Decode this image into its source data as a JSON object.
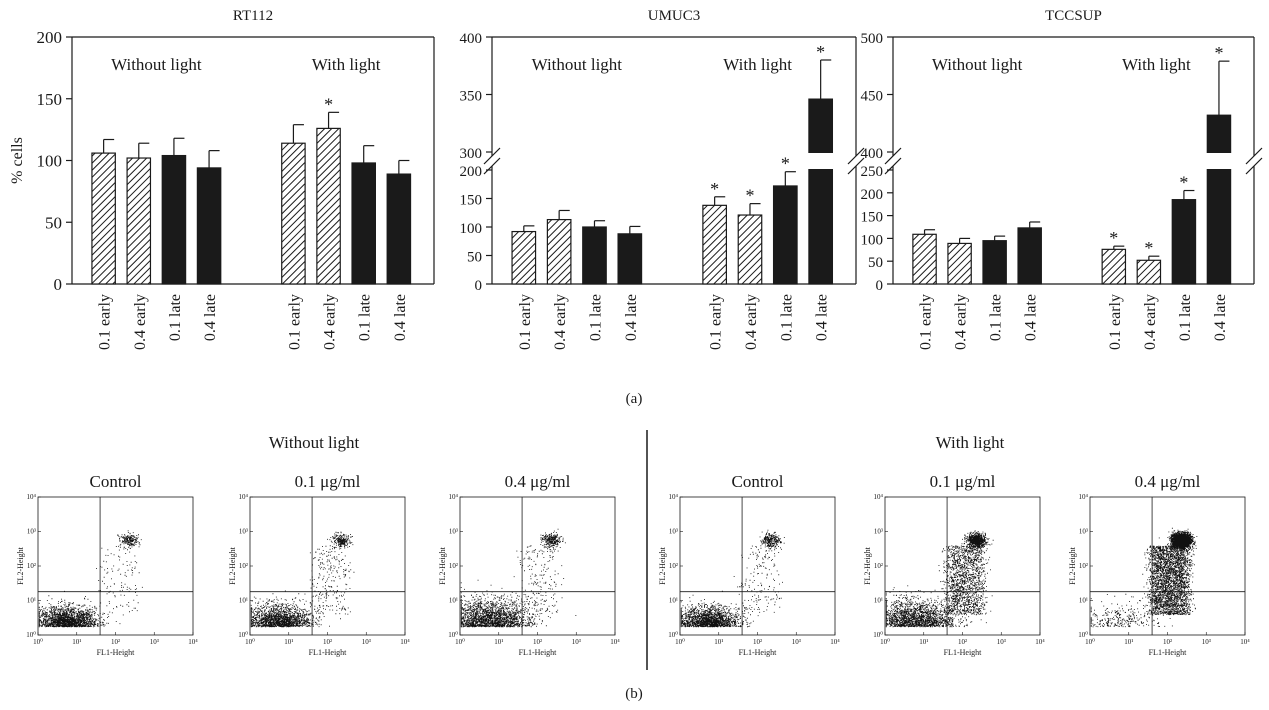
{
  "chart_data": [
    {
      "type": "bar",
      "panel": "a",
      "title": "RT112",
      "ylabel": "% cells",
      "ylim": [
        0,
        200
      ],
      "yticks": [
        "0",
        "50",
        "100",
        "150",
        "200"
      ],
      "group_labels": [
        "Without light",
        "With light"
      ],
      "categories": [
        "0.1 early",
        "0.4 early",
        "0.1 late",
        "0.4 late",
        "0.1 early",
        "0.4 early",
        "0.1 late",
        "0.4 late"
      ],
      "fills": [
        "hatch",
        "hatch",
        "solid",
        "solid",
        "hatch",
        "hatch",
        "solid",
        "solid"
      ],
      "values": [
        106,
        102,
        104,
        94,
        114,
        126,
        98,
        89
      ],
      "errors": [
        11,
        12,
        14,
        14,
        15,
        13,
        14,
        11
      ],
      "significant": [
        false,
        false,
        false,
        false,
        false,
        true,
        false,
        false
      ],
      "marker": "*"
    },
    {
      "type": "bar",
      "panel": "a",
      "title": "UMUC3",
      "ylabel": "",
      "axis_break": {
        "lower": [
          0,
          200
        ],
        "upper": [
          300,
          400
        ]
      },
      "yticks_lower": [
        "0",
        "50",
        "100",
        "150",
        "200"
      ],
      "yticks_upper": [
        "300",
        "350",
        "400"
      ],
      "group_labels": [
        "Without light",
        "With light"
      ],
      "categories": [
        "0.1 early",
        "0.4 early",
        "0.1 late",
        "0.4 late",
        "0.1 early",
        "0.4 early",
        "0.1 late",
        "0.4 late"
      ],
      "fills": [
        "hatch",
        "hatch",
        "solid",
        "solid",
        "hatch",
        "hatch",
        "solid",
        "solid"
      ],
      "values": [
        92,
        113,
        100,
        88,
        138,
        121,
        172,
        346
      ],
      "errors": [
        10,
        16,
        11,
        13,
        15,
        20,
        25,
        34
      ],
      "significant": [
        false,
        false,
        false,
        false,
        true,
        true,
        true,
        true
      ],
      "marker": "*"
    },
    {
      "type": "bar",
      "panel": "a",
      "title": "TCCSUP",
      "ylabel": "",
      "axis_break": {
        "lower": [
          0,
          250
        ],
        "upper": [
          400,
          500
        ]
      },
      "yticks_lower": [
        "0",
        "50",
        "100",
        "150",
        "200",
        "250"
      ],
      "yticks_upper": [
        "400",
        "450",
        "500"
      ],
      "group_labels": [
        "Without light",
        "With light"
      ],
      "categories": [
        "0.1 early",
        "0.4 early",
        "0.1 late",
        "0.4 late",
        "0.1 early",
        "0.4 early",
        "0.1 late",
        "0.4 late"
      ],
      "fills": [
        "hatch",
        "hatch",
        "solid",
        "solid",
        "hatch",
        "hatch",
        "solid",
        "solid"
      ],
      "values": [
        109,
        89,
        95,
        123,
        76,
        52,
        185,
        432
      ],
      "errors": [
        10,
        11,
        10,
        13,
        7,
        9,
        20,
        47
      ],
      "significant": [
        false,
        false,
        false,
        false,
        true,
        true,
        true,
        true
      ],
      "marker": "*"
    },
    {
      "type": "scatter",
      "panel": "b",
      "xlabel": "FL1-Height",
      "ylabel": "FL2-Height",
      "scale": "log",
      "ticks": [
        "10⁰",
        "10¹",
        "10²",
        "10³",
        "10⁴"
      ],
      "gate": {
        "x": 40,
        "y": 18
      },
      "groups": [
        "Without light",
        "With light"
      ],
      "plots": [
        {
          "title": "Control",
          "group": "Without light",
          "double_positive": 0.1,
          "late": 0.06,
          "spread": 0.2,
          "points": 2200
        },
        {
          "title": "0.1 μg/ml",
          "group": "Without light",
          "double_positive": 0.11,
          "late": 0.1,
          "spread": 0.28,
          "points": 2200
        },
        {
          "title": "0.4 μg/ml",
          "group": "Without light",
          "double_positive": 0.1,
          "late": 0.08,
          "spread": 0.55,
          "points": 2500
        },
        {
          "title": "Control",
          "group": "With light",
          "double_positive": 0.12,
          "late": 0.07,
          "spread": 0.2,
          "points": 2200
        },
        {
          "title": "0.1 μg/ml",
          "group": "With light",
          "double_positive": 0.2,
          "late": 0.35,
          "spread": 0.55,
          "points": 4200
        },
        {
          "title": "0.4 μg/ml",
          "group": "With light",
          "double_positive": 0.45,
          "late": 0.5,
          "spread": 0.5,
          "points": 6000
        }
      ]
    }
  ],
  "labels": {
    "panel_a": "(a)",
    "panel_b": "(b)"
  },
  "colors": {
    "ink": "#1a1a1a",
    "bar_fill": "#1a1a1a",
    "hatch_bg": "#ffffff",
    "dots": "#111111"
  }
}
